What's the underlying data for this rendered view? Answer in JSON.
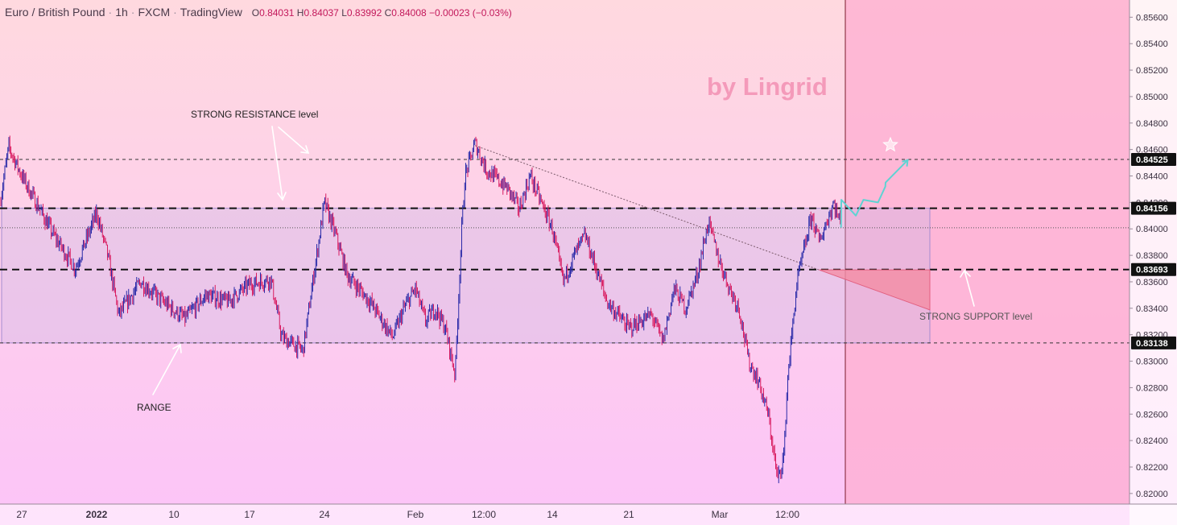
{
  "header": {
    "symbol": "Euro / British Pound",
    "interval": "1h",
    "exchange": "FXCM",
    "platform": "TradingView",
    "ohlc": {
      "o": "0.84031",
      "h": "0.84037",
      "l": "0.83992",
      "c": "0.84008",
      "change": "−0.00023 (−0.03%)"
    }
  },
  "watermark": "by Lingrid",
  "colors": {
    "bg_top": "#ffd9df",
    "bg_bottom": "#fcc4f8",
    "forecast_zone": "#fdaed0",
    "candle_up": "#2a2aa8",
    "candle_down": "#d81b60",
    "range_box": "#c9b6e6",
    "support_triangle": "#f48aa0",
    "projection": "#5fd3d3",
    "label_bg": "#111111"
  },
  "chart_data": {
    "type": "candlestick",
    "title": "Euro / British Pound · 1h · FXCM",
    "ylim": [
      0.8192,
      0.8573
    ],
    "y_ticks": [
      "0.85600",
      "0.85400",
      "0.85200",
      "0.85000",
      "0.84800",
      "0.84600",
      "0.84400",
      "0.84200",
      "0.84000",
      "0.83800",
      "0.83600",
      "0.83400",
      "0.83200",
      "0.83000",
      "0.82800",
      "0.82600",
      "0.82400",
      "0.82200",
      "0.82000"
    ],
    "x_ticks": [
      "27",
      "2022",
      "10",
      "17",
      "24",
      "Feb",
      "12:00",
      "14",
      "21",
      "Mar",
      "12:00"
    ],
    "price_path": [
      [
        "Dec 22",
        0.842
      ],
      [
        "Dec 24",
        0.8462
      ],
      [
        "Dec 27",
        0.844
      ],
      [
        "Dec 30",
        0.8395
      ],
      [
        "Jan 1",
        0.837
      ],
      [
        "Jan 3",
        0.8412
      ],
      [
        "Jan 4",
        0.838
      ],
      [
        "Jan 5",
        0.8335
      ],
      [
        "Jan 7",
        0.836
      ],
      [
        "Jan 9",
        0.8345
      ],
      [
        "Jan 11",
        0.8332
      ],
      [
        "Jan 13",
        0.835
      ],
      [
        "Jan 15",
        0.8345
      ],
      [
        "Jan 17",
        0.8358
      ],
      [
        "Jan 19",
        0.8362
      ],
      [
        "Jan 20",
        0.8318
      ],
      [
        "Jan 22",
        0.8308
      ],
      [
        "Jan 23",
        0.8365
      ],
      [
        "Jan 24",
        0.842
      ],
      [
        "Jan 25",
        0.8395
      ],
      [
        "Jan 26",
        0.8365
      ],
      [
        "Jan 28",
        0.8345
      ],
      [
        "Jan 30",
        0.8318
      ],
      [
        "Jan 31",
        0.834
      ],
      [
        "Feb 1",
        0.8355
      ],
      [
        "Feb 2",
        0.833
      ],
      [
        "Feb 3",
        0.834
      ],
      [
        "Feb 4",
        0.8325
      ],
      [
        "Feb 5",
        0.829
      ],
      [
        "Feb 5b",
        0.84
      ],
      [
        "Feb 6",
        0.844
      ],
      [
        "Feb 7",
        0.8465
      ],
      [
        "Feb 8",
        0.8445
      ],
      [
        "Feb 10",
        0.843
      ],
      [
        "Feb 11",
        0.8415
      ],
      [
        "Feb 12",
        0.844
      ],
      [
        "Feb 14",
        0.84
      ],
      [
        "Feb 15",
        0.836
      ],
      [
        "Feb 16",
        0.838
      ],
      [
        "Feb 17",
        0.8395
      ],
      [
        "Feb 18",
        0.837
      ],
      [
        "Feb 19",
        0.8345
      ],
      [
        "Feb 21",
        0.8325
      ],
      [
        "Feb 23",
        0.8335
      ],
      [
        "Feb 24",
        0.8315
      ],
      [
        "Feb 25",
        0.8355
      ],
      [
        "Feb 26",
        0.834
      ],
      [
        "Feb 27",
        0.8365
      ],
      [
        "Feb 28",
        0.8405
      ],
      [
        "Mar 1",
        0.8375
      ],
      [
        "Mar 2",
        0.8355
      ],
      [
        "Mar 3",
        0.834
      ],
      [
        "Mar 4",
        0.83
      ],
      [
        "Mar 5",
        0.8285
      ],
      [
        "Mar 6",
        0.826
      ],
      [
        "Mar 7",
        0.821
      ],
      [
        "Mar 7b",
        0.823
      ],
      [
        "Mar 8",
        0.8285
      ],
      [
        "Mar 8b",
        0.8335
      ],
      [
        "Mar 9",
        0.836
      ],
      [
        "Mar 9b",
        0.841
      ],
      [
        "Mar 10",
        0.839
      ],
      [
        "Mar 10b",
        0.842
      ],
      [
        "Mar 10c",
        0.8401
      ]
    ],
    "levels": [
      {
        "name": "strong_resistance_high",
        "value": 0.84525,
        "label": "0.84525",
        "style": "dashed-thin"
      },
      {
        "name": "strong_resistance",
        "value": 0.84156,
        "label": "0.84156",
        "style": "dashed-bold"
      },
      {
        "name": "last_price",
        "value": 0.84008,
        "style": "dotted"
      },
      {
        "name": "strong_support",
        "value": 0.83693,
        "label": "0.83693",
        "style": "dashed-bold"
      },
      {
        "name": "range_low",
        "value": 0.83138,
        "label": "0.83138",
        "style": "dashed-thin"
      }
    ],
    "range_box": {
      "from": "Dec 22",
      "to": "Mar 15",
      "top": 0.84156,
      "bottom": 0.83138
    },
    "trendline": {
      "from": [
        "Feb 7",
        0.8463
      ],
      "to": [
        "Mar 10",
        0.8369
      ]
    },
    "projection_path": [
      [
        "Mar 10c",
        0.8401
      ],
      [
        "Mar 11",
        0.8422
      ],
      [
        "Mar 11b",
        0.841
      ],
      [
        "Mar 12",
        0.8422
      ],
      [
        "Mar 12b",
        0.842
      ],
      [
        "Mar 12c",
        0.8432
      ],
      [
        "Mar 13",
        0.8435
      ],
      [
        "Mar 14",
        0.8452
      ]
    ],
    "annotations": [
      {
        "text": "STRONG RESISTANCE level"
      },
      {
        "text": "RANGE"
      },
      {
        "text": "STRONG SUPPORT level"
      }
    ]
  }
}
